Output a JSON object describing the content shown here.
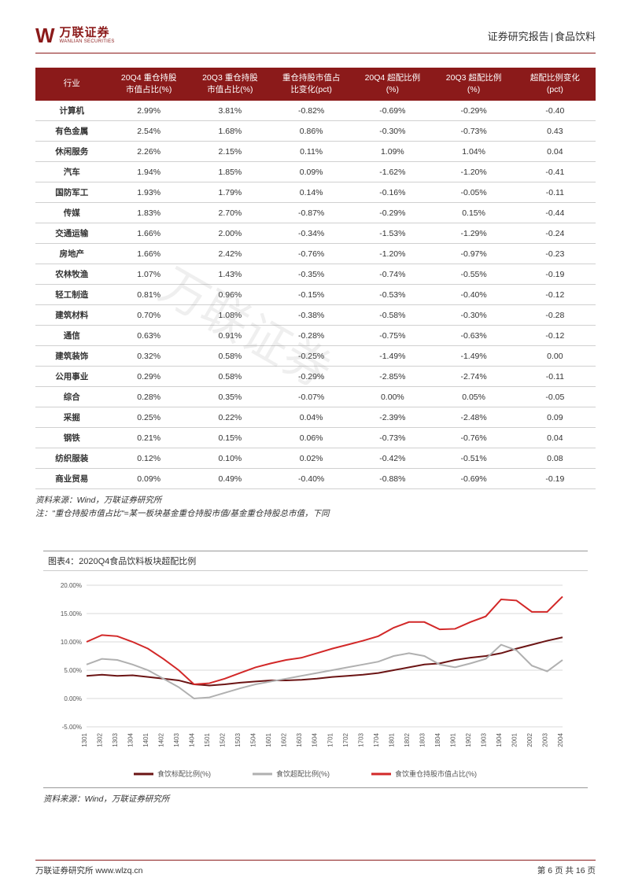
{
  "header": {
    "logo_cn": "万联证券",
    "logo_en": "WANLIAN SECURITIES",
    "report_type": "证券研究报告",
    "category": "食品饮料"
  },
  "table": {
    "columns": [
      "行业",
      "20Q4 重仓持股\n市值占比(%)",
      "20Q3 重仓持股\n市值占比(%)",
      "重仓持股市值占\n比变化(pct)",
      "20Q4 超配比例\n(%)",
      "20Q3 超配比例\n(%)",
      "超配比例变化\n(pct)"
    ],
    "col_widths": [
      "13%",
      "14.5%",
      "14.5%",
      "14.5%",
      "14.5%",
      "14.5%",
      "14.5%"
    ],
    "rows": [
      [
        "计算机",
        "2.99%",
        "3.81%",
        "-0.82%",
        "-0.69%",
        "-0.29%",
        "-0.40"
      ],
      [
        "有色金属",
        "2.54%",
        "1.68%",
        "0.86%",
        "-0.30%",
        "-0.73%",
        "0.43"
      ],
      [
        "休闲服务",
        "2.26%",
        "2.15%",
        "0.11%",
        "1.09%",
        "1.04%",
        "0.04"
      ],
      [
        "汽车",
        "1.94%",
        "1.85%",
        "0.09%",
        "-1.62%",
        "-1.20%",
        "-0.41"
      ],
      [
        "国防军工",
        "1.93%",
        "1.79%",
        "0.14%",
        "-0.16%",
        "-0.05%",
        "-0.11"
      ],
      [
        "传媒",
        "1.83%",
        "2.70%",
        "-0.87%",
        "-0.29%",
        "0.15%",
        "-0.44"
      ],
      [
        "交通运输",
        "1.66%",
        "2.00%",
        "-0.34%",
        "-1.53%",
        "-1.29%",
        "-0.24"
      ],
      [
        "房地产",
        "1.66%",
        "2.42%",
        "-0.76%",
        "-1.20%",
        "-0.97%",
        "-0.23"
      ],
      [
        "农林牧渔",
        "1.07%",
        "1.43%",
        "-0.35%",
        "-0.74%",
        "-0.55%",
        "-0.19"
      ],
      [
        "轻工制造",
        "0.81%",
        "0.96%",
        "-0.15%",
        "-0.53%",
        "-0.40%",
        "-0.12"
      ],
      [
        "建筑材料",
        "0.70%",
        "1.08%",
        "-0.38%",
        "-0.58%",
        "-0.30%",
        "-0.28"
      ],
      [
        "通信",
        "0.63%",
        "0.91%",
        "-0.28%",
        "-0.75%",
        "-0.63%",
        "-0.12"
      ],
      [
        "建筑装饰",
        "0.32%",
        "0.58%",
        "-0.25%",
        "-1.49%",
        "-1.49%",
        "0.00"
      ],
      [
        "公用事业",
        "0.29%",
        "0.58%",
        "-0.29%",
        "-2.85%",
        "-2.74%",
        "-0.11"
      ],
      [
        "综合",
        "0.28%",
        "0.35%",
        "-0.07%",
        "0.00%",
        "0.05%",
        "-0.05"
      ],
      [
        "采掘",
        "0.25%",
        "0.22%",
        "0.04%",
        "-2.39%",
        "-2.48%",
        "0.09"
      ],
      [
        "钢铁",
        "0.21%",
        "0.15%",
        "0.06%",
        "-0.73%",
        "-0.76%",
        "0.04"
      ],
      [
        "纺织服装",
        "0.12%",
        "0.10%",
        "0.02%",
        "-0.42%",
        "-0.51%",
        "0.08"
      ],
      [
        "商业贸易",
        "0.09%",
        "0.49%",
        "-0.40%",
        "-0.88%",
        "-0.69%",
        "-0.19"
      ]
    ],
    "source": "资料来源：Wind，万联证券研究所",
    "note": "注：\"重仓持股市值占比\"=某一板块基金重仓持股市值/基金重仓持股总市值，下同"
  },
  "chart": {
    "title": "图表4：2020Q4食品饮料板块超配比例",
    "type": "line",
    "ylim": [
      -5,
      20
    ],
    "yticks": [
      "-5.00%",
      "0.00%",
      "5.00%",
      "10.00%",
      "15.00%",
      "20.00%"
    ],
    "xlabels": [
      "1301",
      "1302",
      "1303",
      "1304",
      "1401",
      "1402",
      "1403",
      "1404",
      "1501",
      "1502",
      "1503",
      "1504",
      "1601",
      "1602",
      "1603",
      "1604",
      "1701",
      "1702",
      "1703",
      "1704",
      "1801",
      "1802",
      "1803",
      "1804",
      "1901",
      "1902",
      "1903",
      "1904",
      "2001",
      "2002",
      "2003",
      "2004"
    ],
    "series": [
      {
        "name": "食饮标配比例(%)",
        "color": "#6b1414",
        "values": [
          4.0,
          4.2,
          4.0,
          4.1,
          3.8,
          3.5,
          3.2,
          2.5,
          2.3,
          2.5,
          2.8,
          3.0,
          3.2,
          3.2,
          3.3,
          3.5,
          3.8,
          4.0,
          4.2,
          4.5,
          5.0,
          5.5,
          6.0,
          6.2,
          6.8,
          7.2,
          7.5,
          8.0,
          8.8,
          9.5,
          10.2,
          10.8
        ]
      },
      {
        "name": "食饮超配比例(%)",
        "color": "#b0b0b0",
        "values": [
          6.0,
          7.0,
          6.8,
          6.0,
          5.0,
          3.5,
          2.0,
          0.0,
          0.2,
          1.0,
          1.8,
          2.5,
          3.0,
          3.5,
          4.0,
          4.5,
          5.0,
          5.5,
          6.0,
          6.5,
          7.5,
          8.0,
          7.5,
          6.0,
          5.5,
          6.2,
          7.0,
          9.5,
          8.5,
          5.8,
          4.8,
          6.8
        ]
      },
      {
        "name": "食饮重仓持股市值占比(%)",
        "color": "#d22828",
        "values": [
          10.0,
          11.2,
          11.0,
          10.0,
          8.8,
          7.0,
          5.0,
          2.5,
          2.7,
          3.5,
          4.5,
          5.5,
          6.2,
          6.8,
          7.2,
          8.0,
          8.8,
          9.5,
          10.2,
          11.0,
          12.5,
          13.5,
          13.5,
          12.2,
          12.3,
          13.5,
          14.5,
          17.5,
          17.3,
          15.3,
          15.3,
          18.0
        ]
      }
    ],
    "background_color": "#ffffff",
    "grid_color": "#d8d8d8",
    "axis_color": "#999999",
    "xlabel_fontsize": 8,
    "ylabel_fontsize": 8,
    "legend_fontsize": 9,
    "source": "资料来源：Wind，万联证券研究所"
  },
  "footer": {
    "left": "万联证券研究所  www.wlzq.cn",
    "right": "第 6 页 共 16 页"
  },
  "watermark_text": "万联证券"
}
